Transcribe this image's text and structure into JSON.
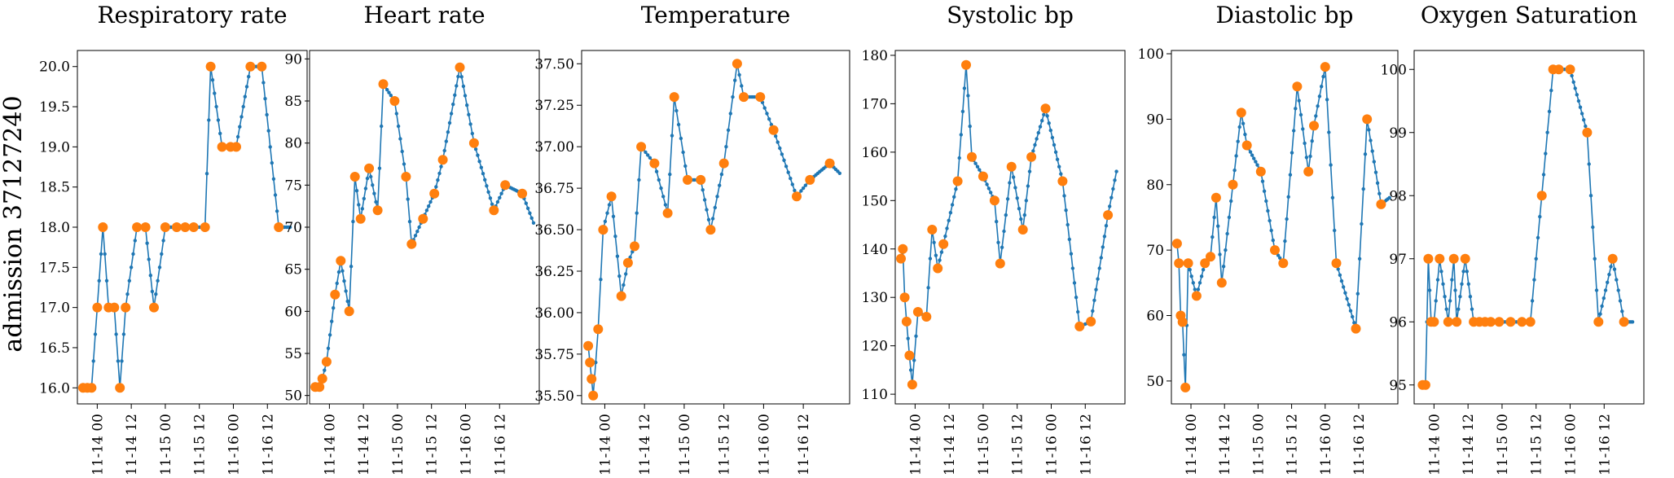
{
  "figure": {
    "row_label": "admission 37127240",
    "series_color": "#1f77b4",
    "observation_color": "#ff7f0e"
  },
  "chart_data": [
    {
      "type": "line",
      "title": "Respiratory rate",
      "xlim": [
        "2024-11-13 17:00",
        "2024-11-17 02:00"
      ],
      "ylim": [
        15.8,
        20.2
      ],
      "yticks": [
        16.0,
        16.5,
        17.0,
        17.5,
        18.0,
        18.5,
        19.0,
        19.5,
        20.0
      ],
      "ytick_labels": [
        "16.0",
        "16.5",
        "17.0",
        "17.5",
        "18.0",
        "18.5",
        "19.0",
        "19.5",
        "20.0"
      ],
      "xticks": [
        "2024-11-14 00:00",
        "2024-11-14 12:00",
        "2024-11-15 00:00",
        "2024-11-15 12:00",
        "2024-11-16 00:00",
        "2024-11-16 12:00"
      ],
      "xtick_labels": [
        "11-14 00",
        "11-14 12",
        "11-15 00",
        "11-15 12",
        "11-16 00",
        "11-16 12"
      ],
      "observations": [
        [
          "2024-11-13 19:00",
          16
        ],
        [
          "2024-11-13 20:30",
          16
        ],
        [
          "2024-11-13 22:00",
          16
        ],
        [
          "2024-11-14 00:00",
          17
        ],
        [
          "2024-11-14 02:00",
          18
        ],
        [
          "2024-11-14 04:00",
          17
        ],
        [
          "2024-11-14 06:00",
          17
        ],
        [
          "2024-11-14 08:00",
          16
        ],
        [
          "2024-11-14 10:00",
          17
        ],
        [
          "2024-11-14 14:00",
          18
        ],
        [
          "2024-11-14 17:00",
          18
        ],
        [
          "2024-11-14 20:00",
          17
        ],
        [
          "2024-11-15 00:00",
          18
        ],
        [
          "2024-11-15 04:00",
          18
        ],
        [
          "2024-11-15 07:00",
          18
        ],
        [
          "2024-11-15 10:00",
          18
        ],
        [
          "2024-11-15 14:00",
          18
        ],
        [
          "2024-11-15 16:00",
          20
        ],
        [
          "2024-11-15 20:00",
          19
        ],
        [
          "2024-11-15 23:00",
          19
        ],
        [
          "2024-11-16 01:00",
          19
        ],
        [
          "2024-11-16 06:00",
          20
        ],
        [
          "2024-11-16 10:00",
          20
        ],
        [
          "2024-11-16 16:00",
          18
        ]
      ],
      "end": [
        "2024-11-16 20:00",
        18
      ]
    },
    {
      "type": "line",
      "title": "Heart rate",
      "xlim": [
        "2024-11-13 17:00",
        "2024-11-17 02:00"
      ],
      "ylim": [
        49,
        91
      ],
      "yticks": [
        50,
        55,
        60,
        65,
        70,
        75,
        80,
        85,
        90
      ],
      "ytick_labels": [
        "50",
        "55",
        "60",
        "65",
        "70",
        "75",
        "80",
        "85",
        "90"
      ],
      "xticks": [
        "2024-11-14 00:00",
        "2024-11-14 12:00",
        "2024-11-15 00:00",
        "2024-11-15 12:00",
        "2024-11-16 00:00",
        "2024-11-16 12:00"
      ],
      "xtick_labels": [
        "11-14 00",
        "11-14 12",
        "11-15 00",
        "11-15 12",
        "11-16 00",
        "11-16 12"
      ],
      "observations": [
        [
          "2024-11-13 19:00",
          51
        ],
        [
          "2024-11-13 20:30",
          51
        ],
        [
          "2024-11-13 21:30",
          52
        ],
        [
          "2024-11-13 23:00",
          54
        ],
        [
          "2024-11-14 02:00",
          62
        ],
        [
          "2024-11-14 04:00",
          66
        ],
        [
          "2024-11-14 07:00",
          60
        ],
        [
          "2024-11-14 09:00",
          76
        ],
        [
          "2024-11-14 11:00",
          71
        ],
        [
          "2024-11-14 14:00",
          77
        ],
        [
          "2024-11-14 17:00",
          72
        ],
        [
          "2024-11-14 19:00",
          87
        ],
        [
          "2024-11-14 23:00",
          85
        ],
        [
          "2024-11-15 03:00",
          76
        ],
        [
          "2024-11-15 05:00",
          68
        ],
        [
          "2024-11-15 09:00",
          71
        ],
        [
          "2024-11-15 13:00",
          74
        ],
        [
          "2024-11-15 16:00",
          78
        ],
        [
          "2024-11-15 22:00",
          89
        ],
        [
          "2024-11-16 03:00",
          80
        ],
        [
          "2024-11-16 10:00",
          72
        ],
        [
          "2024-11-16 14:00",
          75
        ],
        [
          "2024-11-16 20:00",
          74
        ]
      ],
      "end": [
        "2024-11-17 00:00",
        70.5
      ]
    },
    {
      "type": "line",
      "title": "Temperature",
      "xlim": [
        "2024-11-13 17:00",
        "2024-11-17 02:00"
      ],
      "ylim": [
        35.45,
        37.58
      ],
      "yticks": [
        35.5,
        35.75,
        36.0,
        36.25,
        36.5,
        36.75,
        37.0,
        37.25,
        37.5
      ],
      "ytick_labels": [
        "35.50",
        "35.75",
        "36.00",
        "36.25",
        "36.50",
        "36.75",
        "37.00",
        "37.25",
        "37.50"
      ],
      "xticks": [
        "2024-11-14 00:00",
        "2024-11-14 12:00",
        "2024-11-15 00:00",
        "2024-11-15 12:00",
        "2024-11-16 00:00",
        "2024-11-16 12:00"
      ],
      "xtick_labels": [
        "11-14 00",
        "11-14 12",
        "11-15 00",
        "11-15 12",
        "11-16 00",
        "11-16 12"
      ],
      "observations": [
        [
          "2024-11-13 19:00",
          35.8
        ],
        [
          "2024-11-13 19:30",
          35.7
        ],
        [
          "2024-11-13 20:00",
          35.6
        ],
        [
          "2024-11-13 20:30",
          35.5
        ],
        [
          "2024-11-13 22:00",
          35.9
        ],
        [
          "2024-11-13 23:30",
          36.5
        ],
        [
          "2024-11-14 02:00",
          36.7
        ],
        [
          "2024-11-14 05:00",
          36.1
        ],
        [
          "2024-11-14 07:00",
          36.3
        ],
        [
          "2024-11-14 09:00",
          36.4
        ],
        [
          "2024-11-14 11:00",
          37.0
        ],
        [
          "2024-11-14 15:00",
          36.9
        ],
        [
          "2024-11-14 19:00",
          36.6
        ],
        [
          "2024-11-14 21:00",
          37.3
        ],
        [
          "2024-11-15 01:00",
          36.8
        ],
        [
          "2024-11-15 05:00",
          36.8
        ],
        [
          "2024-11-15 08:00",
          36.5
        ],
        [
          "2024-11-15 12:00",
          36.9
        ],
        [
          "2024-11-15 16:00",
          37.5
        ],
        [
          "2024-11-15 18:00",
          37.3
        ],
        [
          "2024-11-15 23:00",
          37.3
        ],
        [
          "2024-11-16 03:00",
          37.1
        ],
        [
          "2024-11-16 10:00",
          36.7
        ],
        [
          "2024-11-16 14:00",
          36.8
        ],
        [
          "2024-11-16 20:00",
          36.9
        ]
      ],
      "end": [
        "2024-11-16 23:00",
        36.84
      ]
    },
    {
      "type": "line",
      "title": "Systolic bp",
      "xlim": [
        "2024-11-13 17:00",
        "2024-11-17 02:00"
      ],
      "ylim": [
        108,
        181
      ],
      "yticks": [
        110,
        120,
        130,
        140,
        150,
        160,
        170,
        180
      ],
      "ytick_labels": [
        "110",
        "120",
        "130",
        "140",
        "150",
        "160",
        "170",
        "180"
      ],
      "xticks": [
        "2024-11-14 00:00",
        "2024-11-14 12:00",
        "2024-11-15 00:00",
        "2024-11-15 12:00",
        "2024-11-16 00:00",
        "2024-11-16 12:00"
      ],
      "xtick_labels": [
        "11-14 00",
        "11-14 12",
        "11-15 00",
        "11-15 12",
        "11-16 00",
        "11-16 12"
      ],
      "observations": [
        [
          "2024-11-13 19:00",
          138
        ],
        [
          "2024-11-13 19:40",
          140
        ],
        [
          "2024-11-13 20:20",
          130
        ],
        [
          "2024-11-13 21:00",
          125
        ],
        [
          "2024-11-13 22:00",
          118
        ],
        [
          "2024-11-13 23:00",
          112
        ],
        [
          "2024-11-14 01:00",
          127
        ],
        [
          "2024-11-14 04:00",
          126
        ],
        [
          "2024-11-14 06:00",
          144
        ],
        [
          "2024-11-14 08:00",
          136
        ],
        [
          "2024-11-14 10:00",
          141
        ],
        [
          "2024-11-14 15:00",
          154
        ],
        [
          "2024-11-14 18:00",
          178
        ],
        [
          "2024-11-14 20:00",
          159
        ],
        [
          "2024-11-15 00:00",
          155
        ],
        [
          "2024-11-15 04:00",
          150
        ],
        [
          "2024-11-15 06:00",
          137
        ],
        [
          "2024-11-15 10:00",
          157
        ],
        [
          "2024-11-15 14:00",
          144
        ],
        [
          "2024-11-15 17:00",
          159
        ],
        [
          "2024-11-15 22:00",
          169
        ],
        [
          "2024-11-16 04:00",
          154
        ],
        [
          "2024-11-16 10:00",
          124
        ],
        [
          "2024-11-16 14:00",
          125
        ],
        [
          "2024-11-16 20:00",
          147
        ]
      ],
      "end": [
        "2024-11-16 23:00",
        156
      ]
    },
    {
      "type": "line",
      "title": "Diastolic bp",
      "xlim": [
        "2024-11-13 17:00",
        "2024-11-17 02:00"
      ],
      "ylim": [
        46.5,
        100.5
      ],
      "yticks": [
        50,
        60,
        70,
        80,
        90,
        100
      ],
      "ytick_labels": [
        "50",
        "60",
        "70",
        "80",
        "90",
        "100"
      ],
      "xticks": [
        "2024-11-14 00:00",
        "2024-11-14 12:00",
        "2024-11-15 00:00",
        "2024-11-15 12:00",
        "2024-11-16 00:00",
        "2024-11-16 12:00"
      ],
      "xtick_labels": [
        "11-14 00",
        "11-14 12",
        "11-15 00",
        "11-15 12",
        "11-16 00",
        "11-16 12"
      ],
      "observations": [
        [
          "2024-11-13 19:00",
          71
        ],
        [
          "2024-11-13 19:40",
          68
        ],
        [
          "2024-11-13 20:20",
          60
        ],
        [
          "2024-11-13 21:00",
          59
        ],
        [
          "2024-11-13 22:00",
          49
        ],
        [
          "2024-11-13 23:00",
          68
        ],
        [
          "2024-11-14 02:00",
          63
        ],
        [
          "2024-11-14 05:00",
          68
        ],
        [
          "2024-11-14 07:00",
          69
        ],
        [
          "2024-11-14 09:00",
          78
        ],
        [
          "2024-11-14 11:00",
          65
        ],
        [
          "2024-11-14 15:00",
          80
        ],
        [
          "2024-11-14 18:00",
          91
        ],
        [
          "2024-11-14 20:00",
          86
        ],
        [
          "2024-11-15 01:00",
          82
        ],
        [
          "2024-11-15 06:00",
          70
        ],
        [
          "2024-11-15 09:00",
          68
        ],
        [
          "2024-11-15 14:00",
          95
        ],
        [
          "2024-11-15 18:00",
          82
        ],
        [
          "2024-11-15 20:00",
          89
        ],
        [
          "2024-11-16 00:00",
          98
        ],
        [
          "2024-11-16 04:00",
          68
        ],
        [
          "2024-11-16 11:00",
          58
        ],
        [
          "2024-11-16 15:00",
          90
        ],
        [
          "2024-11-16 20:00",
          77
        ]
      ],
      "end": [
        "2024-11-16 23:00",
        78
      ]
    },
    {
      "type": "line",
      "title": "Oxygen Saturation",
      "xlim": [
        "2024-11-13 17:00",
        "2024-11-17 02:00"
      ],
      "ylim": [
        94.7,
        100.3
      ],
      "yticks": [
        95,
        96,
        97,
        98,
        99,
        100
      ],
      "ytick_labels": [
        "95",
        "96",
        "97",
        "98",
        "99",
        "100"
      ],
      "xticks": [
        "2024-11-14 00:00",
        "2024-11-14 12:00",
        "2024-11-15 00:00",
        "2024-11-15 12:00",
        "2024-11-16 00:00",
        "2024-11-16 12:00"
      ],
      "xtick_labels": [
        "11-14 00",
        "11-14 12",
        "11-15 00",
        "11-15 12",
        "11-16 00",
        "11-16 12"
      ],
      "observations": [
        [
          "2024-11-13 20:00",
          95
        ],
        [
          "2024-11-13 21:00",
          95
        ],
        [
          "2024-11-13 22:00",
          97
        ],
        [
          "2024-11-13 23:00",
          96
        ],
        [
          "2024-11-14 00:00",
          96
        ],
        [
          "2024-11-14 02:00",
          97
        ],
        [
          "2024-11-14 05:00",
          96
        ],
        [
          "2024-11-14 07:00",
          97
        ],
        [
          "2024-11-14 08:00",
          96
        ],
        [
          "2024-11-14 11:00",
          97
        ],
        [
          "2024-11-14 14:00",
          96
        ],
        [
          "2024-11-14 16:00",
          96
        ],
        [
          "2024-11-14 18:00",
          96
        ],
        [
          "2024-11-14 20:00",
          96
        ],
        [
          "2024-11-14 23:00",
          96
        ],
        [
          "2024-11-15 03:00",
          96
        ],
        [
          "2024-11-15 07:00",
          96
        ],
        [
          "2024-11-15 10:00",
          96
        ],
        [
          "2024-11-15 14:00",
          98
        ],
        [
          "2024-11-15 18:00",
          100
        ],
        [
          "2024-11-15 20:00",
          100
        ],
        [
          "2024-11-16 00:00",
          100
        ],
        [
          "2024-11-16 06:00",
          99
        ],
        [
          "2024-11-16 10:00",
          96
        ],
        [
          "2024-11-16 15:00",
          97
        ],
        [
          "2024-11-16 19:00",
          96
        ]
      ],
      "end": [
        "2024-11-16 22:00",
        96
      ]
    }
  ]
}
